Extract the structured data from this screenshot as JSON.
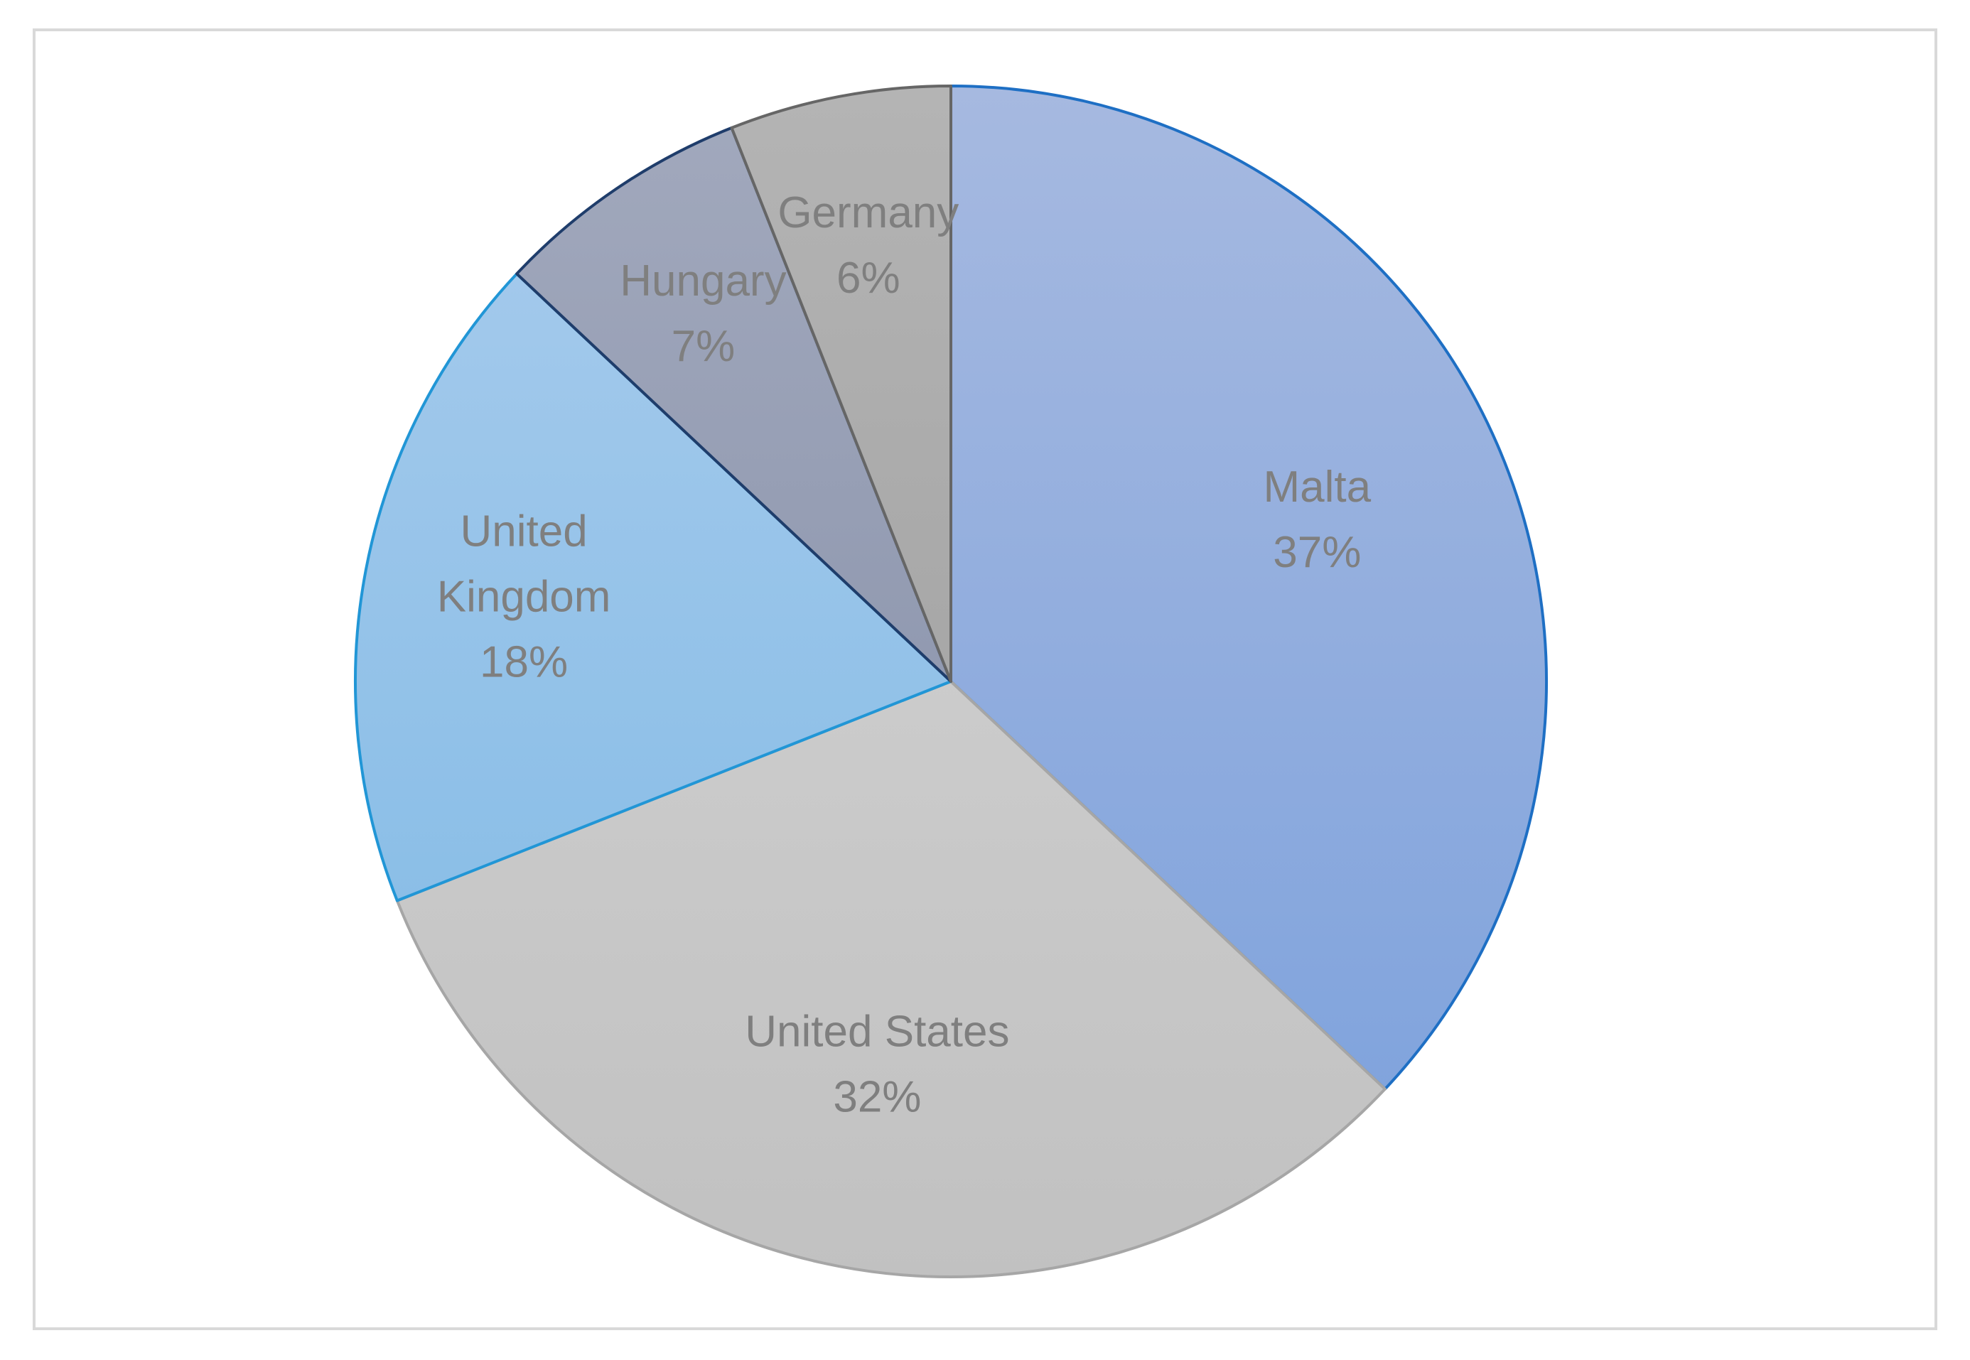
{
  "chart_data": {
    "type": "pie",
    "title": "",
    "categories": [
      "Malta",
      "United States",
      "United Kingdom",
      "Hungary",
      "Germany"
    ],
    "values": [
      37,
      32,
      18,
      7,
      6
    ],
    "labels": [
      {
        "lines": [
          "Malta"
        ],
        "percent": "37%"
      },
      {
        "lines": [
          "United States"
        ],
        "percent": "32%"
      },
      {
        "lines": [
          "United",
          "Kingdom"
        ],
        "percent": "18%"
      },
      {
        "lines": [
          "Hungary"
        ],
        "percent": "7%"
      },
      {
        "lines": [
          "Germany"
        ],
        "percent": "6%"
      }
    ],
    "legend": "none",
    "start_angle": "12 o'clock",
    "direction": "clockwise",
    "colors": [
      {
        "top": "#a6b9e0",
        "bottom": "#7aa0dc",
        "stroke": "#1e6fc4"
      },
      {
        "top": "#d6d6d6",
        "bottom": "#c1c1c1",
        "stroke": "#a6a6a6"
      },
      {
        "top": "#a9cced",
        "bottom": "#7db8e4",
        "stroke": "#2196d6"
      },
      {
        "top": "#a2a9bd",
        "bottom": "#808aa4",
        "stroke": "#1f3d6b"
      },
      {
        "top": "#b4b4b4",
        "bottom": "#9a9a9a",
        "stroke": "#666666"
      }
    ],
    "border_color": "#d9d9d9",
    "label_color": "#7f7f7f"
  }
}
